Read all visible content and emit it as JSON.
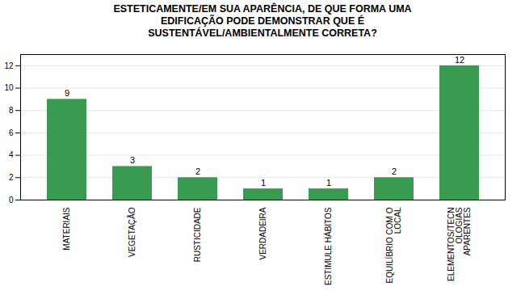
{
  "chart_data": {
    "type": "bar",
    "title": "ESTETICAMENTE/EM SUA APARÊNCIA, DE QUE FORMA UMA\nEDIFICAÇÃO PODE DEMONSTRAR QUE É\nSUSTENTÁVEL/AMBIENTALMENTE CORRETA?",
    "categories": [
      "MATERIAIS",
      "VEGETAÇÃO",
      "RUSTICIDADE",
      "VERDADEIRA",
      "ESTIMULE HÁBITOS",
      "EQUILÍBRIO COM O\nLOCAL",
      "ELEMENTOS/TECN\nOLOGIAS\nAPARENTES"
    ],
    "values": [
      9,
      3,
      2,
      1,
      1,
      2,
      12
    ],
    "color": "#3a9a52",
    "ylim": [
      0,
      13
    ],
    "yticks": [
      0,
      2,
      4,
      6,
      8,
      10,
      12
    ],
    "grid": true,
    "data_labels": true,
    "tick_labels": "x"
  }
}
